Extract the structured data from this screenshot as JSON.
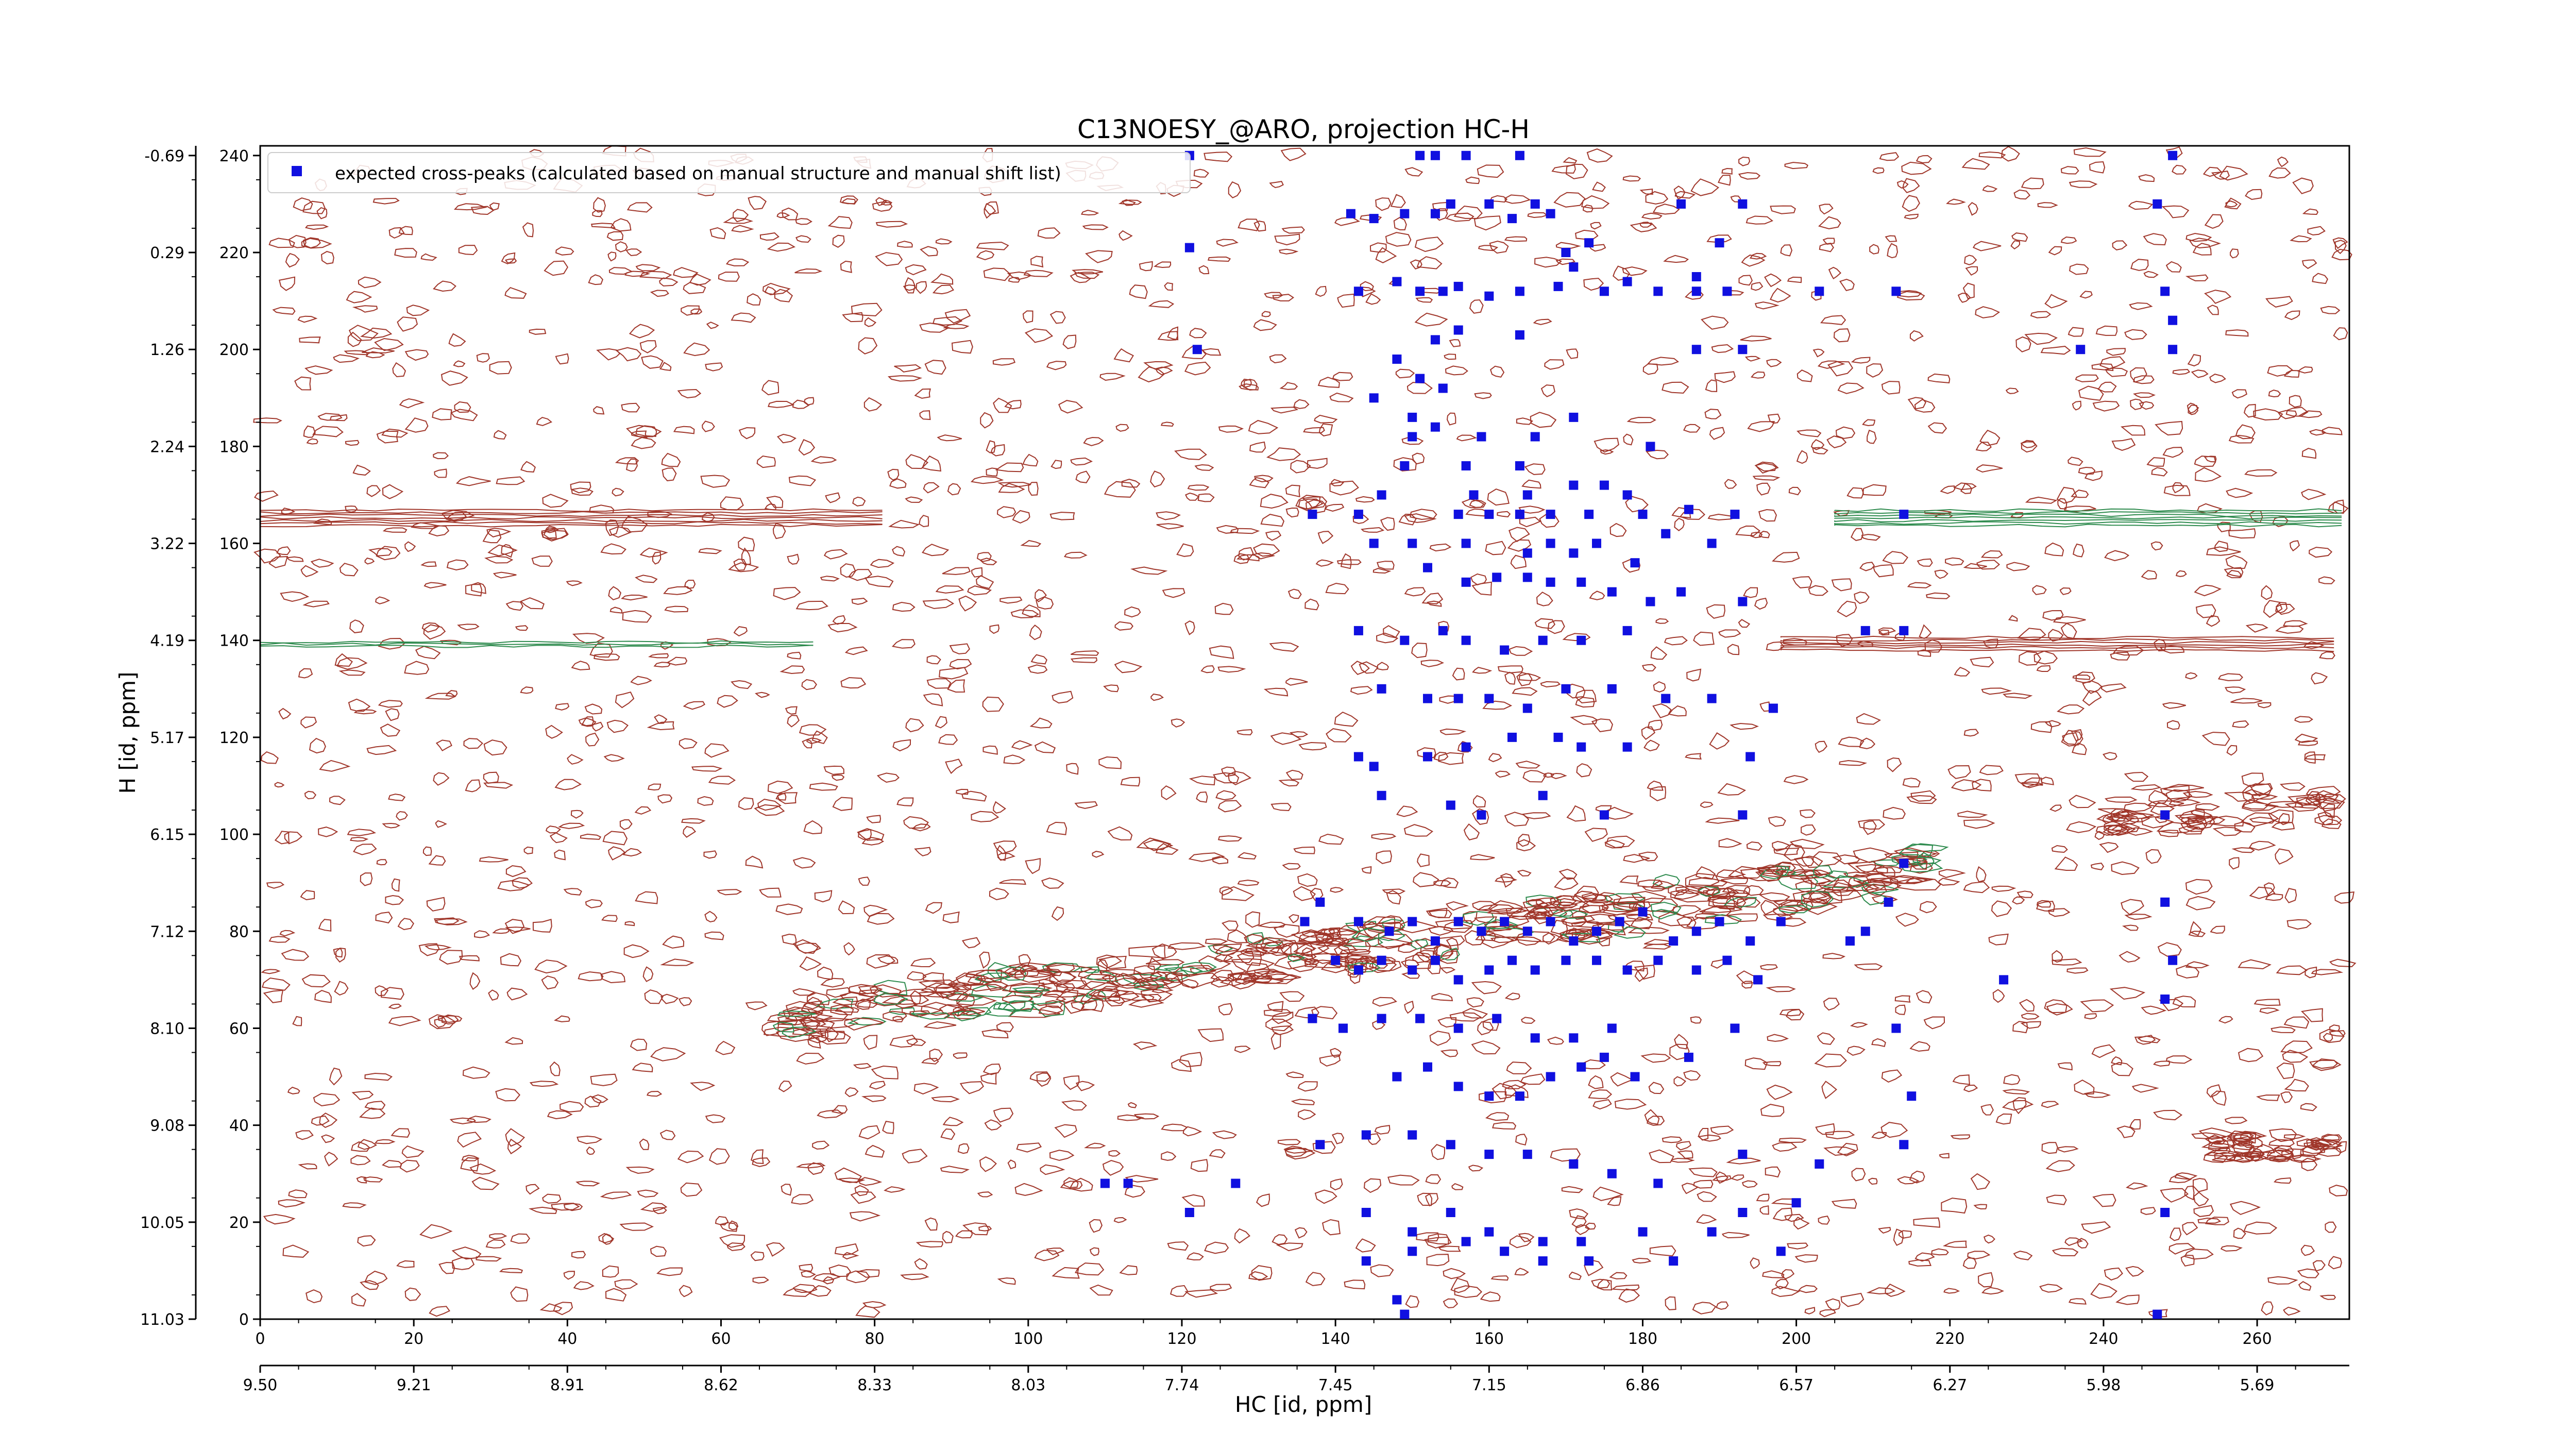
{
  "chart_data": {
    "type": "scatter",
    "title": "C13NOESY_@ARO, projection HC-H",
    "xlabel": "HC [id, ppm]",
    "ylabel": "H [id, ppm]",
    "xlim": [
      0,
      272
    ],
    "ylim": [
      0,
      242
    ],
    "x_ticks": [
      "0",
      "20",
      "40",
      "60",
      "80",
      "100",
      "120",
      "140",
      "160",
      "180",
      "200",
      "220",
      "240",
      "260"
    ],
    "x_ppm_ticks": [
      "9.50",
      "9.21",
      "8.91",
      "8.62",
      "8.33",
      "8.03",
      "7.74",
      "7.45",
      "7.15",
      "6.86",
      "6.57",
      "6.27",
      "5.98",
      "5.69"
    ],
    "y_ticks": [
      "0",
      "20",
      "40",
      "60",
      "80",
      "100",
      "120",
      "140",
      "160",
      "180",
      "200",
      "220",
      "240"
    ],
    "y_ppm_ticks": [
      "11.03",
      "10.05",
      "9.08",
      "8.10",
      "7.12",
      "6.15",
      "5.17",
      "4.19",
      "3.22",
      "2.24",
      "1.26",
      "0.29",
      "-0.69"
    ],
    "legend": {
      "placement": "top-left",
      "entries": [
        "expected cross-peaks (calculated based on manual structure and manual shift list)"
      ]
    },
    "colors": {
      "positive_contours": "#a0362a",
      "negative_contours": "#2e8b4e",
      "peak_marker": "#1010e0"
    },
    "grid": false,
    "series": [
      {
        "name": "expected cross-peaks (calculated based on manual structure and manual shift list)",
        "points": [
          [
            121,
            240
          ],
          [
            121,
            221
          ],
          [
            151,
            240
          ],
          [
            153,
            240
          ],
          [
            157,
            240
          ],
          [
            164,
            240
          ],
          [
            173,
            222
          ],
          [
            155,
            230
          ],
          [
            160,
            230
          ],
          [
            166,
            230
          ],
          [
            185,
            230
          ],
          [
            193,
            230
          ],
          [
            249,
            240
          ],
          [
            247,
            230
          ],
          [
            142,
            228
          ],
          [
            145,
            227
          ],
          [
            149,
            228
          ],
          [
            153,
            228
          ],
          [
            163,
            227
          ],
          [
            168,
            228
          ],
          [
            170,
            220
          ],
          [
            187,
            215
          ],
          [
            190,
            222
          ],
          [
            143,
            212
          ],
          [
            148,
            214
          ],
          [
            151,
            212
          ],
          [
            154,
            212
          ],
          [
            156,
            213
          ],
          [
            160,
            211
          ],
          [
            164,
            212
          ],
          [
            169,
            213
          ],
          [
            171,
            217
          ],
          [
            175,
            212
          ],
          [
            178,
            214
          ],
          [
            182,
            212
          ],
          [
            187,
            212
          ],
          [
            191,
            212
          ],
          [
            203,
            212
          ],
          [
            213,
            212
          ],
          [
            248,
            212
          ],
          [
            249,
            206
          ],
          [
            249,
            200
          ],
          [
            153,
            202
          ],
          [
            156,
            204
          ],
          [
            164,
            203
          ],
          [
            187,
            200
          ],
          [
            193,
            200
          ],
          [
            122,
            200
          ],
          [
            237,
            200
          ],
          [
            148,
            198
          ],
          [
            151,
            194
          ],
          [
            154,
            192
          ],
          [
            145,
            190
          ],
          [
            150,
            186
          ],
          [
            150,
            182
          ],
          [
            153,
            184
          ],
          [
            159,
            182
          ],
          [
            166,
            182
          ],
          [
            171,
            186
          ],
          [
            181,
            180
          ],
          [
            149,
            176
          ],
          [
            157,
            176
          ],
          [
            164,
            176
          ],
          [
            171,
            172
          ],
          [
            175,
            172
          ],
          [
            178,
            170
          ],
          [
            146,
            170
          ],
          [
            158,
            170
          ],
          [
            165,
            170
          ],
          [
            137,
            166
          ],
          [
            143,
            166
          ],
          [
            156,
            166
          ],
          [
            160,
            166
          ],
          [
            164,
            166
          ],
          [
            168,
            166
          ],
          [
            173,
            166
          ],
          [
            180,
            166
          ],
          [
            186,
            167
          ],
          [
            192,
            166
          ],
          [
            214,
            166
          ],
          [
            145,
            160
          ],
          [
            150,
            160
          ],
          [
            157,
            160
          ],
          [
            165,
            158
          ],
          [
            168,
            160
          ],
          [
            171,
            158
          ],
          [
            174,
            160
          ],
          [
            179,
            156
          ],
          [
            183,
            162
          ],
          [
            189,
            160
          ],
          [
            152,
            155
          ],
          [
            157,
            152
          ],
          [
            161,
            153
          ],
          [
            165,
            153
          ],
          [
            168,
            152
          ],
          [
            172,
            152
          ],
          [
            176,
            150
          ],
          [
            181,
            148
          ],
          [
            185,
            150
          ],
          [
            193,
            148
          ],
          [
            143,
            142
          ],
          [
            149,
            140
          ],
          [
            154,
            142
          ],
          [
            157,
            140
          ],
          [
            162,
            138
          ],
          [
            167,
            140
          ],
          [
            172,
            140
          ],
          [
            178,
            142
          ],
          [
            209,
            142
          ],
          [
            214,
            142
          ],
          [
            146,
            130
          ],
          [
            152,
            128
          ],
          [
            156,
            128
          ],
          [
            160,
            128
          ],
          [
            165,
            126
          ],
          [
            170,
            130
          ],
          [
            176,
            130
          ],
          [
            183,
            128
          ],
          [
            189,
            128
          ],
          [
            197,
            126
          ],
          [
            143,
            116
          ],
          [
            145,
            114
          ],
          [
            152,
            116
          ],
          [
            157,
            118
          ],
          [
            163,
            120
          ],
          [
            169,
            120
          ],
          [
            172,
            118
          ],
          [
            178,
            118
          ],
          [
            194,
            116
          ],
          [
            146,
            108
          ],
          [
            155,
            106
          ],
          [
            159,
            104
          ],
          [
            167,
            108
          ],
          [
            175,
            104
          ],
          [
            193,
            104
          ],
          [
            248,
            104
          ],
          [
            136,
            82
          ],
          [
            138,
            86
          ],
          [
            143,
            82
          ],
          [
            147,
            80
          ],
          [
            150,
            82
          ],
          [
            153,
            78
          ],
          [
            156,
            82
          ],
          [
            159,
            80
          ],
          [
            162,
            82
          ],
          [
            165,
            80
          ],
          [
            168,
            82
          ],
          [
            171,
            78
          ],
          [
            174,
            80
          ],
          [
            177,
            82
          ],
          [
            180,
            84
          ],
          [
            184,
            78
          ],
          [
            187,
            80
          ],
          [
            190,
            82
          ],
          [
            194,
            78
          ],
          [
            198,
            82
          ],
          [
            212,
            86
          ],
          [
            214,
            94
          ],
          [
            248,
            86
          ],
          [
            140,
            74
          ],
          [
            143,
            72
          ],
          [
            146,
            74
          ],
          [
            150,
            72
          ],
          [
            153,
            74
          ],
          [
            156,
            70
          ],
          [
            160,
            72
          ],
          [
            163,
            74
          ],
          [
            166,
            72
          ],
          [
            170,
            74
          ],
          [
            174,
            74
          ],
          [
            178,
            72
          ],
          [
            182,
            74
          ],
          [
            187,
            72
          ],
          [
            191,
            74
          ],
          [
            195,
            70
          ],
          [
            207,
            78
          ],
          [
            209,
            80
          ],
          [
            227,
            70
          ],
          [
            249,
            74
          ],
          [
            248,
            66
          ],
          [
            137,
            62
          ],
          [
            141,
            60
          ],
          [
            146,
            62
          ],
          [
            151,
            62
          ],
          [
            156,
            60
          ],
          [
            161,
            62
          ],
          [
            166,
            58
          ],
          [
            171,
            58
          ],
          [
            176,
            60
          ],
          [
            192,
            60
          ],
          [
            213,
            60
          ],
          [
            148,
            50
          ],
          [
            152,
            52
          ],
          [
            156,
            48
          ],
          [
            160,
            46
          ],
          [
            164,
            46
          ],
          [
            168,
            50
          ],
          [
            172,
            52
          ],
          [
            175,
            54
          ],
          [
            179,
            50
          ],
          [
            186,
            54
          ],
          [
            215,
            46
          ],
          [
            138,
            36
          ],
          [
            144,
            38
          ],
          [
            150,
            38
          ],
          [
            155,
            36
          ],
          [
            160,
            34
          ],
          [
            165,
            34
          ],
          [
            171,
            32
          ],
          [
            176,
            30
          ],
          [
            182,
            28
          ],
          [
            193,
            34
          ],
          [
            203,
            32
          ],
          [
            214,
            36
          ],
          [
            110,
            28
          ],
          [
            113,
            28
          ],
          [
            121,
            22
          ],
          [
            127,
            28
          ],
          [
            144,
            22
          ],
          [
            150,
            18
          ],
          [
            155,
            22
          ],
          [
            160,
            18
          ],
          [
            167,
            16
          ],
          [
            172,
            16
          ],
          [
            180,
            18
          ],
          [
            189,
            18
          ],
          [
            193,
            22
          ],
          [
            200,
            24
          ],
          [
            248,
            22
          ],
          [
            144,
            12
          ],
          [
            150,
            14
          ],
          [
            157,
            16
          ],
          [
            162,
            14
          ],
          [
            167,
            12
          ],
          [
            173,
            12
          ],
          [
            184,
            12
          ],
          [
            198,
            14
          ],
          [
            148,
            4
          ],
          [
            149,
            1
          ],
          [
            247,
            1
          ]
        ]
      }
    ]
  }
}
